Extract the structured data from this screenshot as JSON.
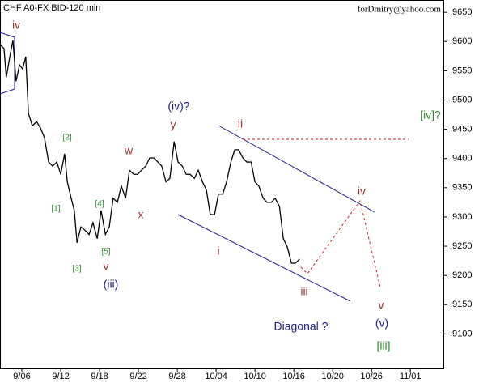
{
  "chart_data": {
    "type": "line",
    "title": "CHF A0-FX BID-120 min",
    "watermark": "forDmitry@yahoo.com",
    "x": [
      -0.56,
      -0.46,
      -0.4,
      -0.31,
      -0.23,
      -0.15,
      -0.06,
      0.02,
      0.1,
      0.17,
      0.27,
      0.38,
      0.48,
      0.58,
      0.69,
      0.79,
      0.9,
      1.0,
      1.1,
      1.17,
      1.27,
      1.35,
      1.42,
      1.52,
      1.63,
      1.73,
      1.83,
      1.94,
      2.04,
      2.15,
      2.25,
      2.35,
      2.46,
      2.56,
      2.67,
      2.77,
      2.88,
      2.98,
      3.08,
      3.19,
      3.29,
      3.4,
      3.5,
      3.6,
      3.71,
      3.81,
      3.92,
      4.02,
      4.13,
      4.23,
      4.33,
      4.44,
      4.54,
      4.65,
      4.75,
      4.85,
      4.96,
      5.06,
      5.17,
      5.27,
      5.38,
      5.48,
      5.58,
      5.69,
      5.79,
      5.9,
      6.0,
      6.1,
      6.21,
      6.31,
      6.42,
      6.52,
      6.63,
      6.73,
      6.83,
      6.94,
      7.04,
      7.15
    ],
    "series": [
      {
        "color": "#000000",
        "values": [
          0.9595,
          0.9588,
          0.9539,
          0.9574,
          0.9602,
          0.9532,
          0.956,
          0.9553,
          0.9574,
          0.9477,
          0.9456,
          0.9463,
          0.9452,
          0.9436,
          0.9394,
          0.9387,
          0.9394,
          0.9373,
          0.9408,
          0.936,
          0.9332,
          0.9311,
          0.9256,
          0.9283,
          0.9277,
          0.927,
          0.929,
          0.9263,
          0.9311,
          0.927,
          0.9283,
          0.9332,
          0.9325,
          0.9353,
          0.9332,
          0.938,
          0.9373,
          0.9373,
          0.938,
          0.9387,
          0.9401,
          0.9401,
          0.9394,
          0.9387,
          0.936,
          0.9366,
          0.9429,
          0.9394,
          0.9387,
          0.9373,
          0.9373,
          0.9366,
          0.938,
          0.936,
          0.9346,
          0.9304,
          0.9304,
          0.9339,
          0.9339,
          0.936,
          0.9394,
          0.9415,
          0.9415,
          0.9401,
          0.9394,
          0.9394,
          0.936,
          0.9353,
          0.9332,
          0.9325,
          0.9325,
          0.9332,
          0.9318,
          0.9263,
          0.9249,
          0.9221,
          0.9221,
          0.9228
        ]
      }
    ],
    "xlim": [
      -0.5625,
      10.85
    ],
    "ylim": [
      0.9041,
      0.9671
    ],
    "xticks": [
      {
        "value": 0,
        "label": "9/06"
      },
      {
        "value": 1,
        "label": "9/12"
      },
      {
        "value": 2,
        "label": "9/18"
      },
      {
        "value": 3,
        "label": "9/22"
      },
      {
        "value": 4,
        "label": "9/28"
      },
      {
        "value": 5,
        "label": "10/04"
      },
      {
        "value": 6,
        "label": "10/10"
      },
      {
        "value": 7,
        "label": "10/16"
      },
      {
        "value": 8,
        "label": "10/20"
      },
      {
        "value": 9,
        "label": "10/26"
      },
      {
        "value": 10,
        "label": "11/01"
      }
    ],
    "yticks": [
      {
        "value": 0.91,
        "label": ".9100"
      },
      {
        "value": 0.915,
        "label": ".9150"
      },
      {
        "value": 0.92,
        "label": ".9200"
      },
      {
        "value": 0.925,
        "label": ".9250"
      },
      {
        "value": 0.93,
        "label": ".9300"
      },
      {
        "value": 0.935,
        "label": ".9350"
      },
      {
        "value": 0.94,
        "label": ".9400"
      },
      {
        "value": 0.945,
        "label": ".9450"
      },
      {
        "value": 0.95,
        "label": ".9500"
      },
      {
        "value": 0.955,
        "label": ".9550"
      },
      {
        "value": 0.96,
        "label": ".9600"
      },
      {
        "value": 0.965,
        "label": ".9650"
      }
    ],
    "annotations": [
      {
        "text": "iv",
        "color": "#993333"
      },
      {
        "text": "[2]",
        "color": "#2e8b2e"
      },
      {
        "text": "[1]",
        "color": "#2e8b2e"
      },
      {
        "text": "[3]",
        "color": "#2e8b2e"
      },
      {
        "text": "[4]",
        "color": "#2e8b2e"
      },
      {
        "text": "[5]",
        "color": "#2e8b2e"
      },
      {
        "text": "v",
        "color": "#993333"
      },
      {
        "text": "(iii)",
        "color": "#1a1a8c"
      },
      {
        "text": "w",
        "color": "#993333"
      },
      {
        "text": "x",
        "color": "#993333"
      },
      {
        "text": "y",
        "color": "#993333"
      },
      {
        "text": "(iv)?",
        "color": "#1a1a8c"
      },
      {
        "text": "ii",
        "color": "#993333"
      },
      {
        "text": "i",
        "color": "#993333"
      },
      {
        "text": "iii",
        "color": "#993333"
      },
      {
        "text": "iv",
        "color": "#993333"
      },
      {
        "text": "v",
        "color": "#993333"
      },
      {
        "text": "(v)",
        "color": "#1a1a8c"
      },
      {
        "text": "[iii]",
        "color": "#2e8b2e"
      },
      {
        "text": "[iv]?",
        "color": "#2e8b2e"
      },
      {
        "text": "Diagonal ?",
        "color": "#1a1a8c"
      }
    ]
  }
}
